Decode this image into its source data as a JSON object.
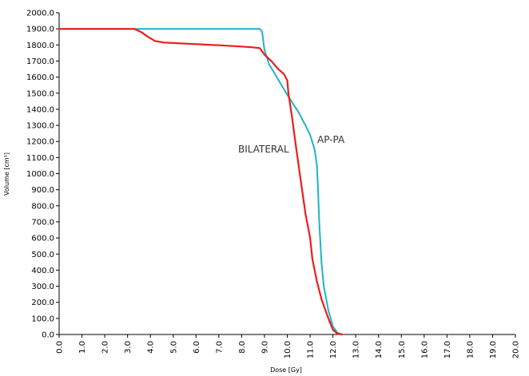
{
  "chart_data": {
    "type": "line",
    "xlabel": "Dose [Gy]",
    "ylabel": "Volume [cm³]",
    "xlim": [
      0,
      20
    ],
    "ylim": [
      0,
      2000
    ],
    "x_ticks": [
      "0.0",
      "1.0",
      "2.0",
      "3.0",
      "4.0",
      "5.0",
      "6.0",
      "7.0",
      "8.0",
      "9.0",
      "10.0",
      "11.0",
      "12.0",
      "13.0",
      "14.0",
      "15.0",
      "16.0",
      "17.0",
      "18.0",
      "19.0",
      "20.0"
    ],
    "y_ticks": [
      "0.0",
      "100.0",
      "200.0",
      "300.0",
      "400.0",
      "500.0",
      "600.0",
      "700.0",
      "800.0",
      "900.0",
      "1000.0",
      "1100.0",
      "1200.0",
      "1300.0",
      "1400.0",
      "1500.0",
      "1600.0",
      "1700.0",
      "1800.0",
      "1900.0",
      "2000.0"
    ],
    "grid": false,
    "legend": "none",
    "series": [
      {
        "name": "AP-PA",
        "color": "#1fb3c8",
        "points": [
          [
            0,
            1900
          ],
          [
            8.8,
            1900
          ],
          [
            8.9,
            1880
          ],
          [
            9.0,
            1770
          ],
          [
            9.2,
            1680
          ],
          [
            9.5,
            1610
          ],
          [
            10.0,
            1490
          ],
          [
            10.5,
            1380
          ],
          [
            10.8,
            1300
          ],
          [
            11.0,
            1240
          ],
          [
            11.2,
            1150
          ],
          [
            11.3,
            1050
          ],
          [
            11.35,
            900
          ],
          [
            11.4,
            700
          ],
          [
            11.5,
            450
          ],
          [
            11.6,
            300
          ],
          [
            11.8,
            150
          ],
          [
            12.0,
            50
          ],
          [
            12.2,
            10
          ],
          [
            12.4,
            0
          ]
        ]
      },
      {
        "name": "BILATERAL",
        "color": "#ee1c1c",
        "points": [
          [
            0,
            1900
          ],
          [
            3.3,
            1900
          ],
          [
            3.6,
            1880
          ],
          [
            3.9,
            1850
          ],
          [
            4.2,
            1825
          ],
          [
            4.6,
            1815
          ],
          [
            5.0,
            1812
          ],
          [
            6.0,
            1805
          ],
          [
            7.0,
            1798
          ],
          [
            8.0,
            1790
          ],
          [
            8.5,
            1785
          ],
          [
            8.8,
            1780
          ],
          [
            9.0,
            1740
          ],
          [
            9.3,
            1700
          ],
          [
            9.6,
            1650
          ],
          [
            9.85,
            1620
          ],
          [
            10.0,
            1580
          ],
          [
            10.05,
            1500
          ],
          [
            10.2,
            1360
          ],
          [
            10.4,
            1150
          ],
          [
            10.6,
            950
          ],
          [
            10.8,
            750
          ],
          [
            11.0,
            600
          ],
          [
            11.1,
            470
          ],
          [
            11.3,
            330
          ],
          [
            11.5,
            220
          ],
          [
            11.8,
            100
          ],
          [
            12.0,
            30
          ],
          [
            12.2,
            5
          ],
          [
            12.4,
            0
          ]
        ]
      }
    ]
  }
}
